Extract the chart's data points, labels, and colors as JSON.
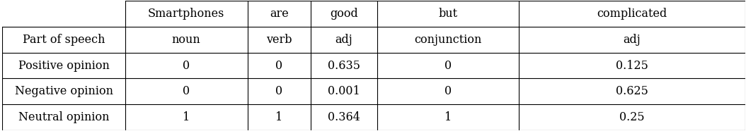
{
  "col_headers": [
    "Smartphones",
    "are",
    "good",
    "but",
    "complicated"
  ],
  "row_headers": [
    "",
    "Part of speech",
    "Positive opinion",
    "Negative opinion",
    "Neutral opinion"
  ],
  "row1": [
    "noun",
    "verb",
    "adj",
    "conjunction",
    "adj"
  ],
  "row2": [
    "0",
    "0",
    "0.635",
    "0",
    "0.125"
  ],
  "row3": [
    "0",
    "0",
    "0.001",
    "0",
    "0.625"
  ],
  "row4": [
    "1",
    "1",
    "0.364",
    "1",
    "0.25"
  ],
  "bg_color": "#ffffff",
  "text_color": "#000000",
  "font_size": 11.5
}
